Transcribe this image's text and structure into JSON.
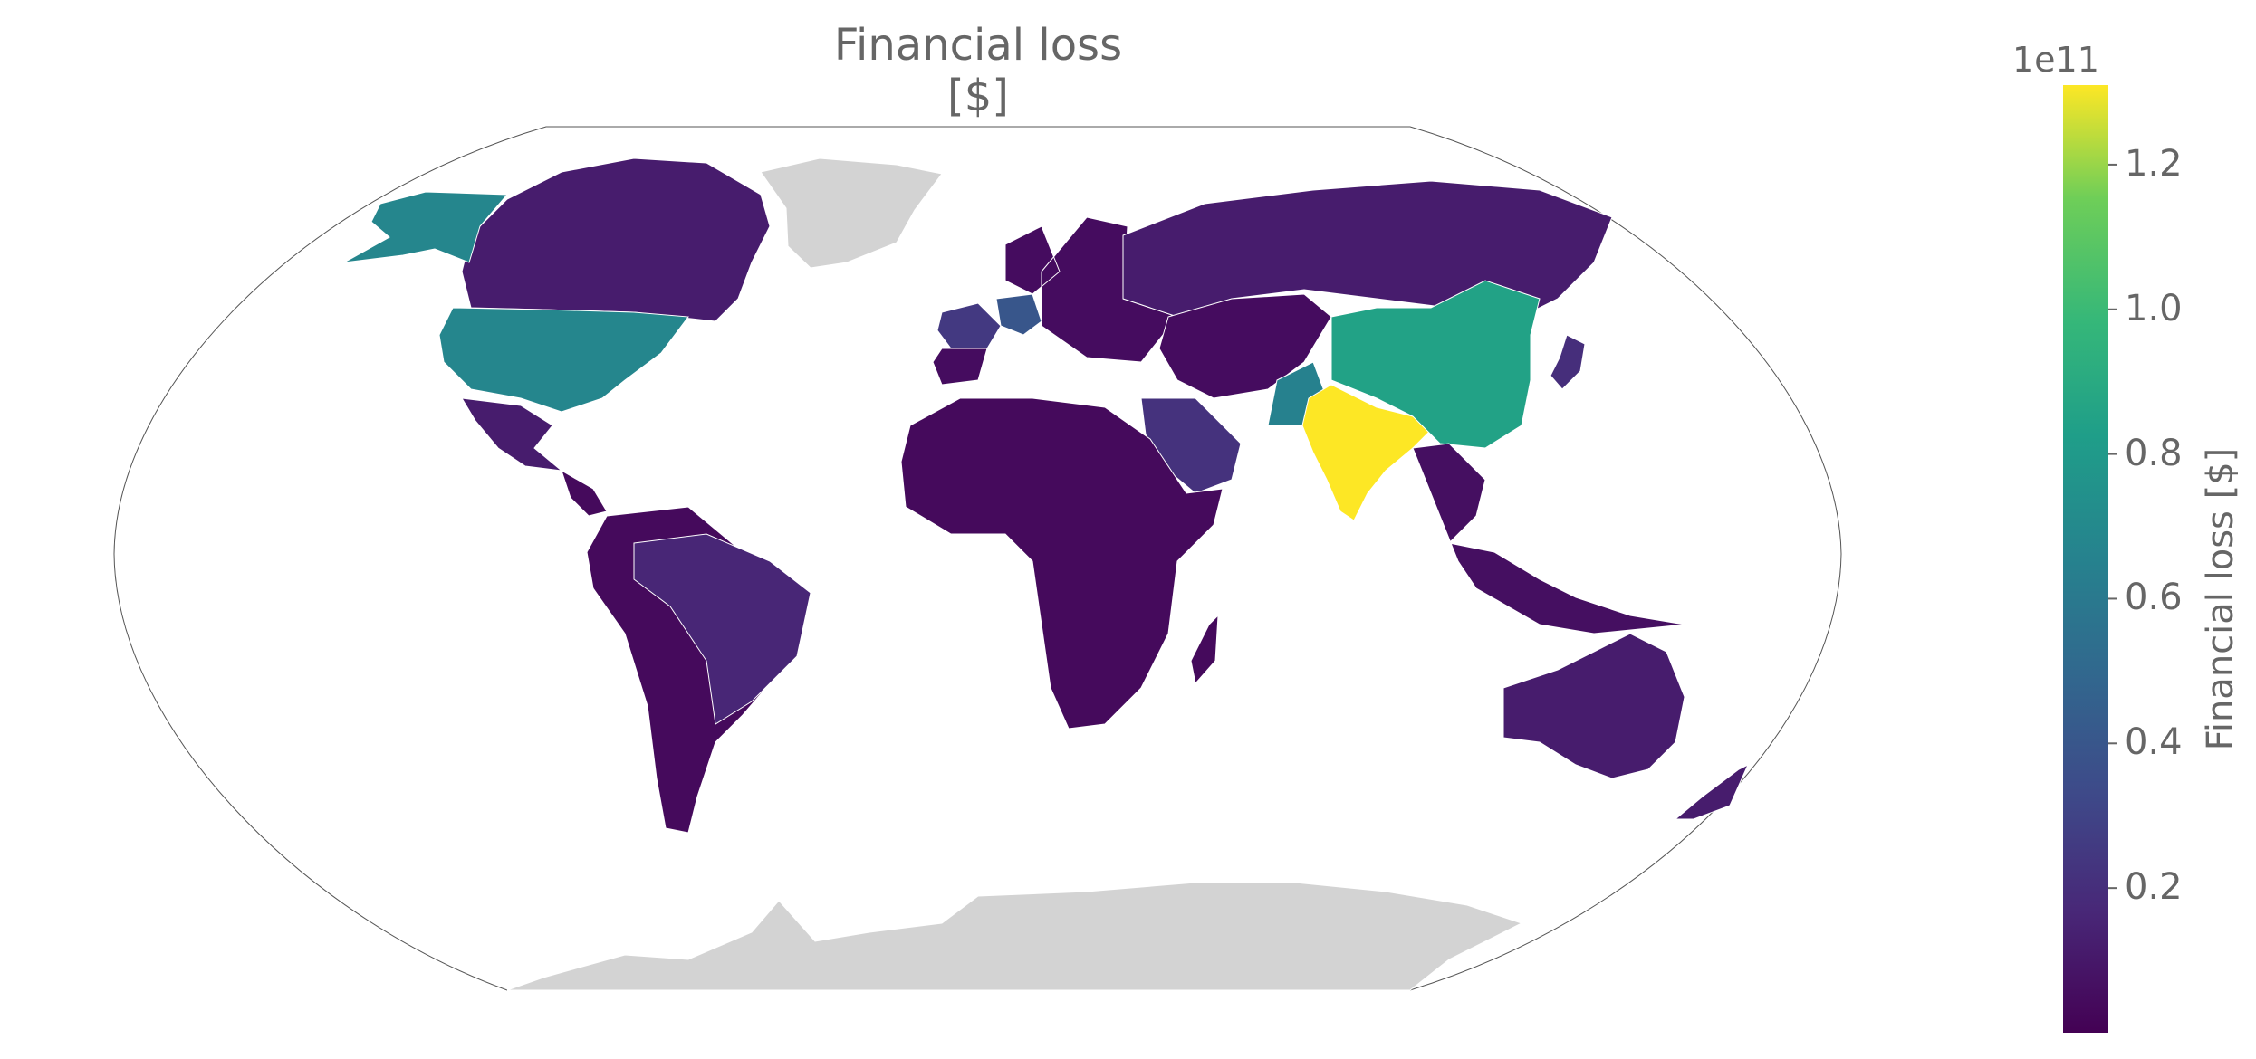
{
  "chart_data": {
    "type": "choropleth",
    "title": "Financial loss [$]",
    "colorbar": {
      "label": "Financial loss [$]",
      "exponent_label": "1e11",
      "range": [
        0.0,
        1.31
      ],
      "ticks": [
        0.2,
        0.4,
        0.6,
        0.8,
        1.0,
        1.2
      ],
      "tick_labels": [
        "0.2",
        "0.4",
        "0.6",
        "0.8",
        "1.0",
        "1.2"
      ],
      "colormap": "viridis"
    },
    "no_data_color": "#d3d3d3",
    "regions": [
      {
        "name": "India",
        "value": 1.31
      },
      {
        "name": "China",
        "value": 0.85
      },
      {
        "name": "USA",
        "value": 0.68
      },
      {
        "name": "Alaska",
        "value": 0.68
      },
      {
        "name": "Pakistan",
        "value": 0.65
      },
      {
        "name": "Germany",
        "value": 0.4
      },
      {
        "name": "France",
        "value": 0.25
      },
      {
        "name": "Saudi Arabia",
        "value": 0.22
      },
      {
        "name": "Japan",
        "value": 0.2
      },
      {
        "name": "Brazil",
        "value": 0.16
      },
      {
        "name": "Canada",
        "value": 0.12
      },
      {
        "name": "Russia",
        "value": 0.12
      },
      {
        "name": "Australia",
        "value": 0.12
      },
      {
        "name": "Mexico",
        "value": 0.12
      },
      {
        "name": "Africa",
        "value": 0.04
      },
      {
        "name": "South America",
        "value": 0.04
      },
      {
        "name": "Southeast Asia",
        "value": 0.06
      },
      {
        "name": "Central Asia",
        "value": 0.05
      },
      {
        "name": "Greenland",
        "value": null
      },
      {
        "name": "Antarctica",
        "value": null
      }
    ]
  }
}
